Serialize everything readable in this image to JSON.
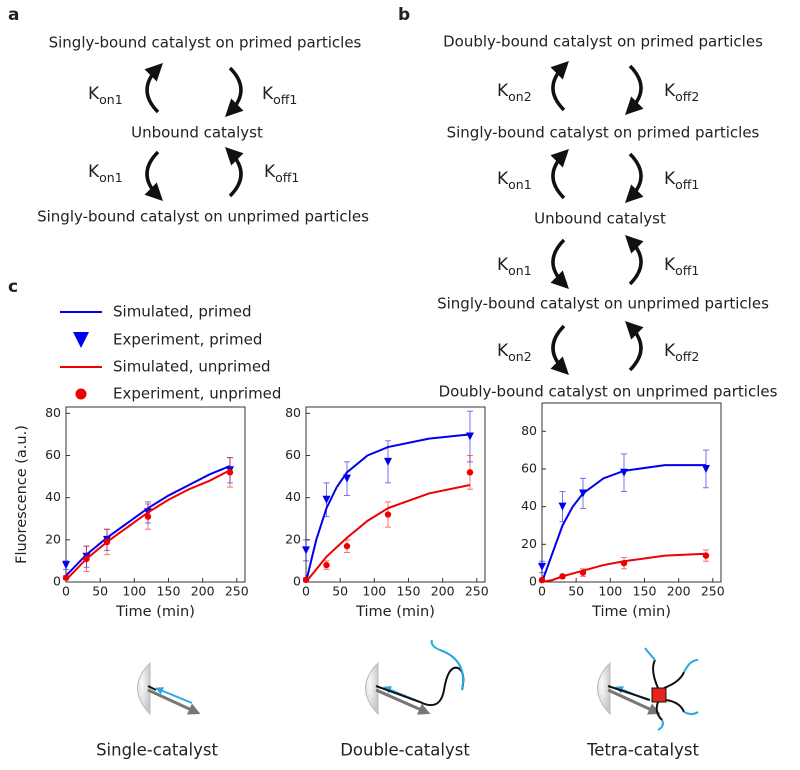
{
  "panel_labels": [
    "a",
    "b",
    "c"
  ],
  "panel_a": {
    "states": [
      "Singly-bound catalyst on primed particles",
      "Unbound catalyst",
      "Singly-bound catalyst on unprimed particles"
    ],
    "rates": [
      {
        "base": "K",
        "sub": "on1"
      },
      {
        "base": "K",
        "sub": "off1"
      },
      {
        "base": "K",
        "sub": "on1"
      },
      {
        "base": "K",
        "sub": "off1"
      }
    ]
  },
  "panel_b": {
    "states": [
      "Doubly-bound catalyst on primed particles",
      "Singly-bound catalyst on primed particles",
      "Unbound catalyst",
      "Singly-bound catalyst on unprimed particles",
      "Doubly-bound catalyst on unprimed particles"
    ],
    "rates": [
      {
        "base": "K",
        "sub": "on2"
      },
      {
        "base": "K",
        "sub": "off2"
      },
      {
        "base": "K",
        "sub": "on1"
      },
      {
        "base": "K",
        "sub": "off1"
      },
      {
        "base": "K",
        "sub": "on1"
      },
      {
        "base": "K",
        "sub": "off1"
      },
      {
        "base": "K",
        "sub": "on2"
      },
      {
        "base": "K",
        "sub": "off2"
      }
    ]
  },
  "captions": [
    "Single-catalyst",
    "Double-catalyst",
    "Tetra-catalyst"
  ],
  "chart_data": [
    {
      "type": "line",
      "y_label": "Fluorescence (a.u.)",
      "x_label": "Time (min)",
      "xlim": [
        0,
        262
      ],
      "ylim": [
        0,
        83
      ],
      "xticks": [
        0,
        50,
        100,
        150,
        200,
        250
      ],
      "yticks": [
        0,
        20,
        40,
        60,
        80
      ],
      "series": [
        {
          "name": "Simulated, primed",
          "color": "#0000ee",
          "marker": "line",
          "x": [
            0,
            30,
            60,
            90,
            120,
            150,
            180,
            210,
            240
          ],
          "values": [
            3,
            13,
            21,
            28,
            35,
            41,
            46,
            51,
            55
          ]
        },
        {
          "name": "Experiment, primed",
          "color": "#0000ee",
          "marker": "triangle",
          "x": [
            0,
            30,
            60,
            120,
            240
          ],
          "values": [
            8,
            12,
            20,
            33,
            53
          ],
          "errors": [
            2,
            5,
            5,
            5,
            6
          ]
        },
        {
          "name": "Simulated, unprimed",
          "color": "#ee0000",
          "marker": "line",
          "x": [
            0,
            30,
            60,
            90,
            120,
            150,
            180,
            210,
            240
          ],
          "values": [
            1,
            11,
            19,
            26,
            33,
            39,
            44,
            48,
            53
          ]
        },
        {
          "name": "Experiment, unprimed",
          "color": "#ee0000",
          "marker": "circle",
          "x": [
            0,
            30,
            60,
            120,
            240
          ],
          "values": [
            2,
            11,
            19,
            31,
            52
          ],
          "errors": [
            1,
            6,
            6,
            6,
            7
          ]
        }
      ]
    },
    {
      "type": "line",
      "x_label": "Time (min)",
      "xlim": [
        0,
        262
      ],
      "ylim": [
        0,
        83
      ],
      "xticks": [
        0,
        50,
        100,
        150,
        200,
        250
      ],
      "yticks": [
        0,
        20,
        40,
        60,
        80
      ],
      "series": [
        {
          "color": "#0000ee",
          "marker": "line",
          "x": [
            0,
            15,
            30,
            45,
            60,
            90,
            120,
            180,
            240
          ],
          "values": [
            0,
            20,
            35,
            45,
            52,
            60,
            64,
            68,
            70
          ]
        },
        {
          "color": "#0000ee",
          "marker": "triangle",
          "x": [
            0,
            30,
            60,
            120,
            240
          ],
          "values": [
            15,
            39,
            49,
            57,
            69
          ],
          "errors": [
            5,
            8,
            8,
            10,
            12
          ]
        },
        {
          "color": "#ee0000",
          "marker": "line",
          "x": [
            0,
            15,
            30,
            60,
            90,
            120,
            180,
            240
          ],
          "values": [
            0,
            6,
            12,
            21,
            29,
            35,
            42,
            46
          ]
        },
        {
          "color": "#ee0000",
          "marker": "circle",
          "x": [
            0,
            30,
            60,
            120,
            240
          ],
          "values": [
            1,
            8,
            17,
            32,
            52
          ],
          "errors": [
            1,
            2,
            3,
            6,
            8
          ]
        }
      ]
    },
    {
      "type": "line",
      "x_label": "Time (min)",
      "xlim": [
        0,
        262
      ],
      "ylim": [
        0,
        95
      ],
      "xticks": [
        0,
        50,
        100,
        150,
        200,
        250
      ],
      "yticks": [
        0,
        20,
        40,
        60,
        80
      ],
      "series": [
        {
          "color": "#0000ee",
          "marker": "line",
          "x": [
            0,
            15,
            30,
            45,
            60,
            90,
            120,
            180,
            240
          ],
          "values": [
            0,
            15,
            30,
            40,
            47,
            55,
            59,
            62,
            62
          ]
        },
        {
          "color": "#0000ee",
          "marker": "triangle",
          "x": [
            0,
            30,
            60,
            120,
            240
          ],
          "values": [
            8,
            40,
            47,
            58,
            60
          ],
          "errors": [
            3,
            8,
            8,
            10,
            10
          ]
        },
        {
          "color": "#ee0000",
          "marker": "line",
          "x": [
            0,
            15,
            30,
            60,
            90,
            120,
            180,
            240
          ],
          "values": [
            0,
            1,
            3,
            6,
            9,
            11,
            14,
            15
          ]
        },
        {
          "color": "#ee0000",
          "marker": "circle",
          "x": [
            0,
            30,
            60,
            120,
            240
          ],
          "values": [
            1,
            3,
            5,
            10,
            14
          ],
          "errors": [
            1,
            1,
            2,
            3,
            3
          ]
        }
      ]
    }
  ]
}
